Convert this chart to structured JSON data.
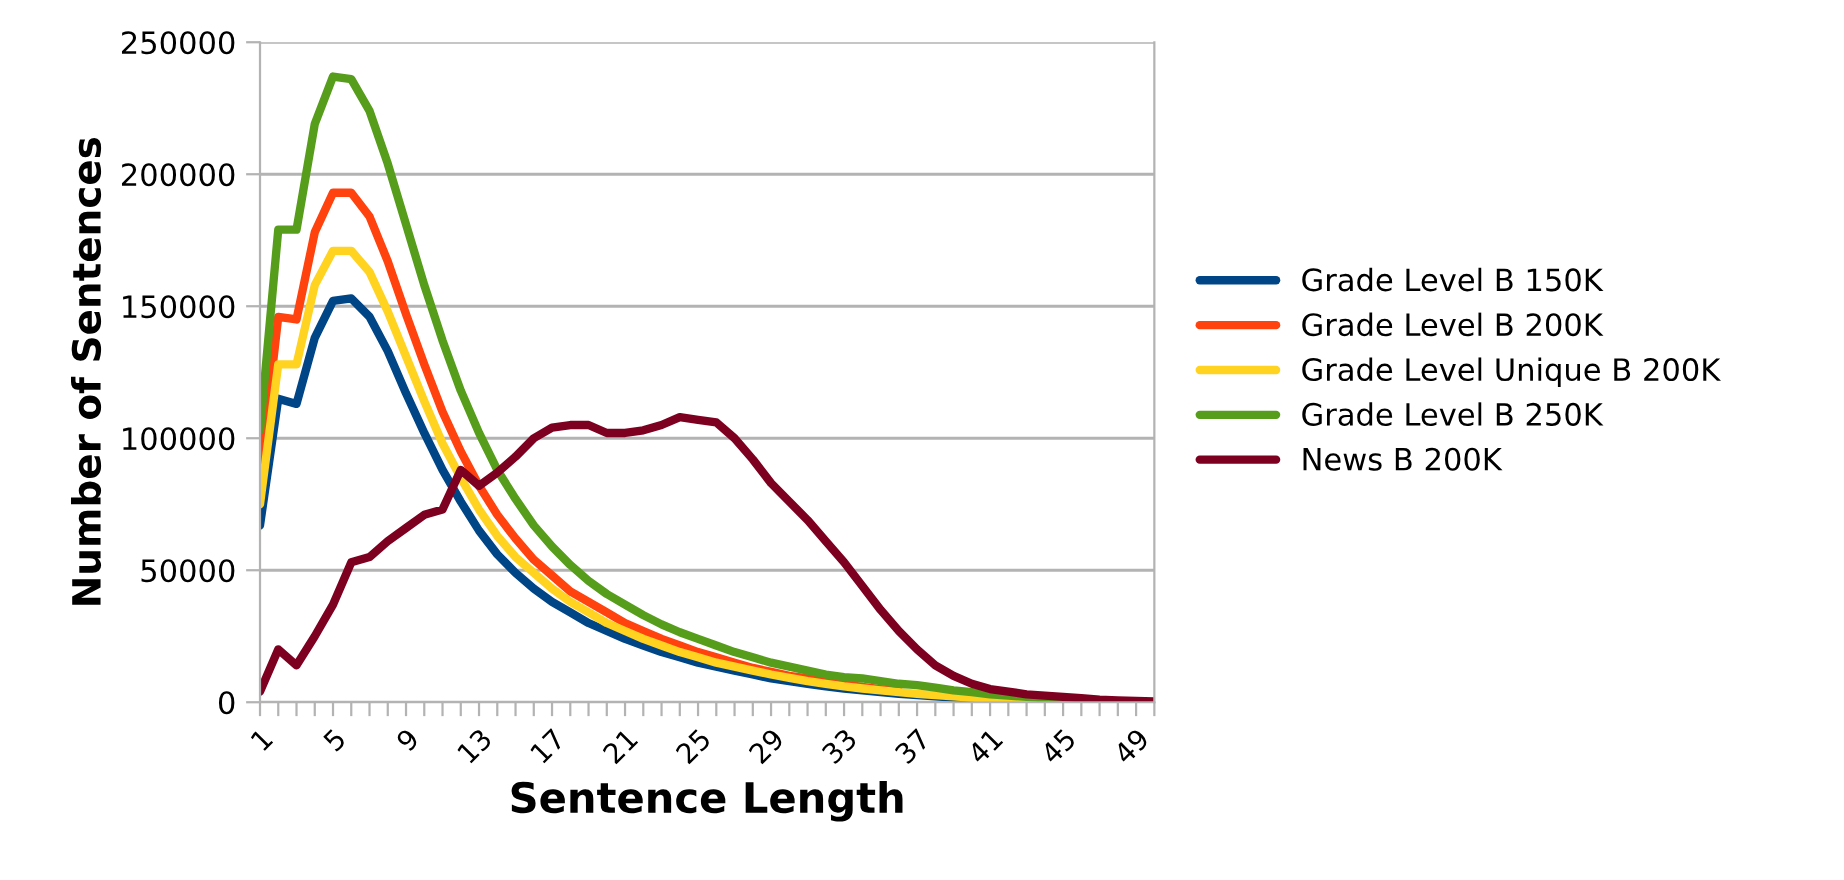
{
  "chart_data": {
    "type": "line",
    "xlabel": "Sentence Length",
    "ylabel": "Number of Sentences",
    "categories": [
      "1",
      null,
      null,
      null,
      "5",
      null,
      null,
      null,
      "9",
      null,
      null,
      null,
      "13",
      null,
      null,
      null,
      "17",
      null,
      null,
      null,
      "21",
      null,
      null,
      null,
      "25",
      null,
      null,
      null,
      "29",
      null,
      null,
      null,
      "33",
      null,
      null,
      null,
      "37",
      null,
      null,
      null,
      "41",
      null,
      null,
      null,
      "45",
      null,
      null,
      null,
      "49",
      null
    ],
    "ylim": [
      0,
      250000
    ],
    "yticks": [
      0,
      50000,
      100000,
      150000,
      200000,
      250000
    ],
    "grid": "y",
    "legend": "right",
    "marker": "none",
    "line_style": "solid",
    "series": [
      {
        "name": "Grade Level B 150K",
        "color": "#004586",
        "values": [
          67000,
          115000,
          113000,
          138000,
          152000,
          153000,
          146000,
          133000,
          117000,
          102000,
          88000,
          76000,
          65000,
          56000,
          49000,
          43000,
          38000,
          34000,
          30000,
          27000,
          24000,
          21500,
          19000,
          17000,
          15000,
          13500,
          12000,
          10500,
          9000,
          8000,
          7000,
          6000,
          5200,
          4500,
          3800,
          3200,
          2700,
          2200,
          1800,
          1500,
          1200,
          null,
          null,
          null,
          null,
          null,
          null,
          null,
          null,
          null
        ]
      },
      {
        "name": "Grade Level B 200K",
        "color": "#ff420e",
        "values": [
          85000,
          146000,
          145000,
          178000,
          193000,
          193000,
          184000,
          167000,
          147000,
          128000,
          110000,
          95000,
          82000,
          71000,
          62000,
          54000,
          48000,
          42000,
          38000,
          34000,
          30000,
          27000,
          24000,
          21500,
          19000,
          17000,
          15000,
          13000,
          11500,
          10000,
          9000,
          7800,
          6800,
          5800,
          5000,
          4300,
          null,
          null,
          null,
          null,
          null,
          null,
          null,
          null,
          null,
          null,
          null,
          null,
          null,
          null
        ]
      },
      {
        "name": "Grade Level Unique B 200K",
        "color": "#ffd320",
        "values": [
          75000,
          128000,
          128000,
          158000,
          171000,
          171000,
          163000,
          148000,
          131000,
          114000,
          98000,
          85000,
          73000,
          63000,
          55000,
          49000,
          43000,
          38000,
          34000,
          30000,
          27000,
          24000,
          21500,
          19000,
          17000,
          15000,
          13500,
          12000,
          10500,
          9200,
          8000,
          7000,
          6000,
          5200,
          4500,
          3800,
          3200,
          2700,
          2200,
          1800,
          1400,
          1100,
          900,
          700,
          null,
          null,
          null,
          null,
          null,
          null
        ]
      },
      {
        "name": "Grade Level B 250K",
        "color": "#579d1c",
        "values": [
          103000,
          179000,
          179000,
          219000,
          237000,
          236000,
          224000,
          204000,
          181000,
          158000,
          137000,
          118000,
          102000,
          88000,
          77000,
          67000,
          59000,
          52000,
          46000,
          41000,
          37000,
          33000,
          29500,
          26500,
          24000,
          21500,
          19000,
          17000,
          15000,
          13500,
          12000,
          10500,
          9500,
          9000,
          8000,
          7000,
          6500,
          5500,
          4500,
          3800,
          3000,
          2500,
          2000,
          1500,
          1200,
          900,
          null,
          null,
          null,
          null
        ]
      },
      {
        "name": "News B 200K",
        "color": "#7e0021",
        "values": [
          4000,
          20000,
          14000,
          25000,
          37000,
          53000,
          55000,
          61000,
          66000,
          71000,
          73000,
          88000,
          82000,
          87000,
          93000,
          100000,
          104000,
          105000,
          105000,
          102000,
          102000,
          103000,
          105000,
          108000,
          107000,
          106000,
          100000,
          92000,
          83000,
          76000,
          69000,
          61000,
          53000,
          44000,
          35000,
          27000,
          20000,
          14000,
          10000,
          7000,
          5000,
          4000,
          3000,
          2500,
          2000,
          1500,
          1000,
          700,
          500,
          300
        ]
      }
    ]
  }
}
